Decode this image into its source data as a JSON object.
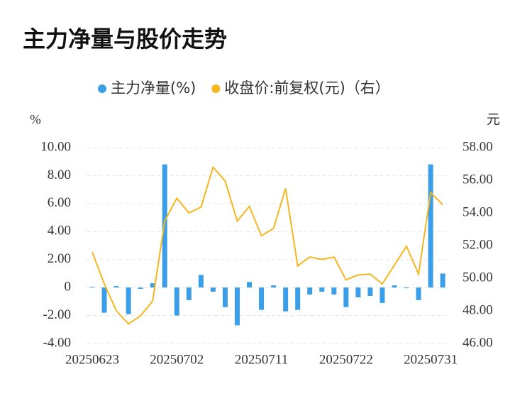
{
  "chart_data": {
    "type": "bar_line",
    "title": "主力净量与股价走势",
    "y_label": "%",
    "y2_label": "元",
    "categories": [
      "20250623",
      null,
      null,
      null,
      null,
      null,
      null,
      "20250702",
      null,
      null,
      null,
      null,
      null,
      null,
      "20250711",
      null,
      null,
      null,
      null,
      null,
      null,
      "20250722",
      null,
      null,
      null,
      null,
      null,
      null,
      "20250731",
      null
    ],
    "series": [
      {
        "name": "主力净量(%)",
        "type": "bar",
        "color": "#3a9ee8",
        "values": [
          0.05,
          -1.8,
          0.1,
          -1.9,
          -0.1,
          0.3,
          8.8,
          -2.0,
          -0.9,
          0.9,
          -0.3,
          -1.4,
          -2.7,
          0.4,
          -1.6,
          0.15,
          -1.7,
          -1.6,
          -0.5,
          -0.3,
          -0.5,
          -1.4,
          -0.7,
          -0.6,
          -1.1,
          0.15,
          -0.05,
          -0.9,
          8.8,
          1.0
        ]
      },
      {
        "name": "收盘价:前复权(元)（右）",
        "type": "line",
        "axis": "y2",
        "color": "#f5b61f",
        "values": [
          51.6,
          49.65,
          48.0,
          47.2,
          47.7,
          48.6,
          53.5,
          54.9,
          54.0,
          54.35,
          56.8,
          55.95,
          53.5,
          54.4,
          52.6,
          53.05,
          55.5,
          50.75,
          51.3,
          51.15,
          51.3,
          49.9,
          50.2,
          50.25,
          49.65,
          50.8,
          51.95,
          50.25,
          55.25,
          54.5
        ]
      }
    ],
    "ylim": [
      -4,
      10
    ],
    "yticks": [
      {
        "value": -4,
        "label": "-4.00"
      },
      {
        "value": -2,
        "label": "-2.00"
      },
      0,
      {
        "value": 2,
        "label": "2.00"
      },
      {
        "value": 4,
        "label": "4.00"
      },
      {
        "value": 6,
        "label": "6.00"
      },
      {
        "value": 8,
        "label": "8.00"
      },
      {
        "value": 10,
        "label": "10.00"
      }
    ],
    "y2lim": [
      46,
      58
    ],
    "y2ticks": [
      {
        "value": 46,
        "label": "46.00"
      },
      {
        "value": 48,
        "label": "48.00"
      },
      {
        "value": 50,
        "label": "50.00"
      },
      {
        "value": 52,
        "label": "52.00"
      },
      {
        "value": 54,
        "label": "54.00"
      },
      {
        "value": 56,
        "label": "56.00"
      },
      {
        "value": 58,
        "label": "58.00"
      }
    ],
    "grid": true,
    "legend": "top"
  }
}
